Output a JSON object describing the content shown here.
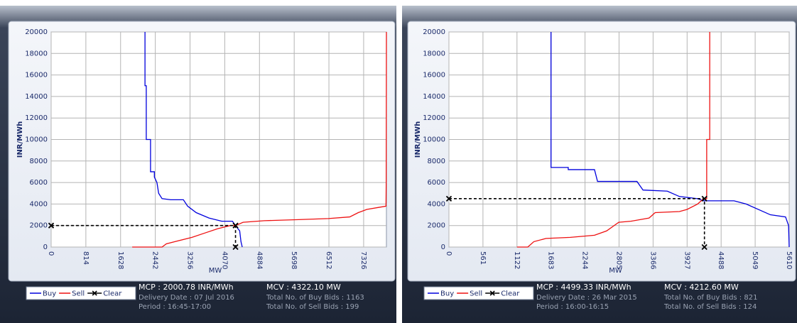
{
  "chart_data": [
    {
      "type": "line",
      "ylabel": "INR/MWh",
      "xlabel": "MW",
      "xlim": [
        0,
        7860
      ],
      "ylim": [
        0,
        20000
      ],
      "xticks": [
        0,
        814,
        1628,
        2442,
        3256,
        4070,
        4884,
        5698,
        6512,
        7326
      ],
      "yticks": [
        0,
        2000,
        4000,
        6000,
        8000,
        10000,
        12000,
        14000,
        16000,
        18000,
        20000
      ],
      "grid": true,
      "series": [
        {
          "name": "Buy",
          "color": "#0000dd",
          "x": [
            2200,
            2200,
            2230,
            2230,
            2330,
            2330,
            2420,
            2420,
            2480,
            2520,
            2600,
            2800,
            3100,
            3200,
            3400,
            3700,
            4000,
            4250,
            4322,
            4420,
            4450,
            4480
          ],
          "values": [
            20000,
            15000,
            15000,
            10000,
            10000,
            7000,
            7000,
            6500,
            6000,
            5000,
            4500,
            4400,
            4400,
            3800,
            3200,
            2700,
            2400,
            2400,
            2000,
            1500,
            500,
            0
          ]
        },
        {
          "name": "Sell",
          "color": "#ee1111",
          "x": [
            1900,
            2600,
            2700,
            3000,
            3300,
            3600,
            3900,
            4200,
            4322,
            4500,
            5000,
            5800,
            6500,
            7000,
            7200,
            7400,
            7700,
            7850,
            7855,
            7860
          ],
          "values": [
            0,
            0,
            300,
            600,
            900,
            1300,
            1700,
            2000,
            2000,
            2300,
            2450,
            2550,
            2650,
            2800,
            3200,
            3500,
            3700,
            3800,
            6000,
            20000
          ]
        },
        {
          "name": "Clear",
          "color": "#000000",
          "x": [
            0,
            4322.1,
            4322.1
          ],
          "values": [
            2000.78,
            2000.78,
            0
          ]
        }
      ],
      "mcp": "MCP : 2000.78 INR/MWh",
      "delivery_date": "Delivery Date : 07 Jul 2016",
      "period": "Period :  16:45-17:00",
      "mcv": "MCV : 4322.10 MW",
      "buy_bids": "Total No. of Buy Bids : 1163",
      "sell_bids": "Total No. of Sell Bids : 199"
    },
    {
      "type": "line",
      "ylabel": "INR/MWh",
      "xlabel": "MW",
      "xlim": [
        0,
        5610
      ],
      "ylim": [
        0,
        20000
      ],
      "xticks": [
        0,
        561,
        1122,
        1683,
        2244,
        2805,
        3366,
        3927,
        4488,
        5049,
        5610
      ],
      "yticks": [
        0,
        2000,
        4000,
        6000,
        8000,
        10000,
        12000,
        14000,
        16000,
        18000,
        20000
      ],
      "grid": true,
      "series": [
        {
          "name": "Buy",
          "color": "#0000dd",
          "x": [
            1683,
            1683,
            1967,
            1967,
            2400,
            2450,
            3100,
            3200,
            3600,
            3800,
            4100,
            4200,
            4700,
            4900,
            5300,
            5550,
            5600,
            5610
          ],
          "values": [
            20000,
            7400,
            7400,
            7200,
            7200,
            6100,
            6100,
            5300,
            5200,
            4700,
            4500,
            4300,
            4300,
            4000,
            3000,
            2800,
            2000,
            0
          ]
        },
        {
          "name": "Sell",
          "color": "#ee1111",
          "x": [
            1122,
            1300,
            1400,
            1600,
            2000,
            2400,
            2600,
            2800,
            3000,
            3300,
            3400,
            3800,
            3927,
            4100,
            4200,
            4250,
            4250,
            4300,
            4300
          ],
          "values": [
            0,
            0,
            500,
            800,
            900,
            1100,
            1500,
            2300,
            2400,
            2700,
            3200,
            3300,
            3500,
            4000,
            4500,
            4500,
            10000,
            10000,
            20000
          ]
        },
        {
          "name": "Clear",
          "color": "#000000",
          "x": [
            0,
            4212.6,
            4212.6
          ],
          "values": [
            4499.33,
            4499.33,
            0
          ]
        }
      ],
      "mcp": "MCP : 4499.33 INR/MWh",
      "delivery_date": "Delivery Date : 26 Mar 2015",
      "period": "Period :  16:00-16:15",
      "mcv": "MCV : 4212.60 MW",
      "buy_bids": "Total No. of Buy Bids : 821",
      "sell_bids": "Total No. of Sell Bids : 124"
    }
  ]
}
